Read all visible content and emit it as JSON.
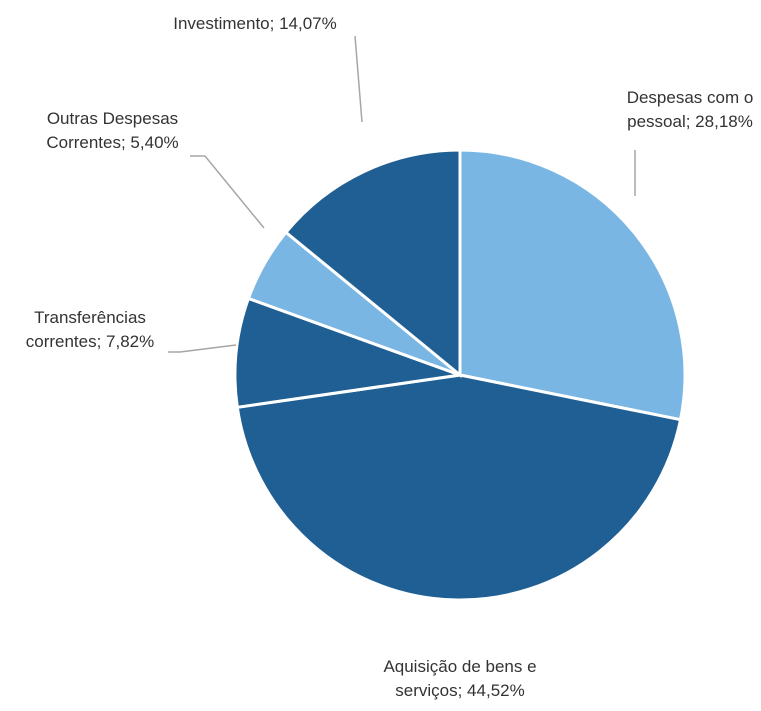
{
  "chart_data": {
    "type": "pie",
    "values": [
      28.18,
      44.52,
      7.82,
      5.4,
      14.07
    ],
    "value_labels": [
      "Despesas com o pessoal; 28,18%",
      "Aquisição de bens e serviços; 44,52%",
      "Transferências correntes; 7,82%",
      "Outras Despesas Correntes; 5,40%",
      "Investimento; 14,07%"
    ],
    "colors": [
      "#7ab6e3",
      "#1f5f94",
      "#1f5f94",
      "#7ab6e3",
      "#1f5f94"
    ]
  }
}
